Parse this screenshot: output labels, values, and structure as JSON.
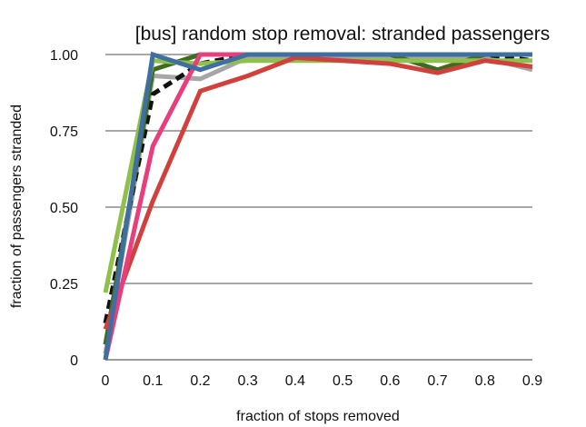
{
  "chart_data": {
    "type": "line",
    "title": "[bus] random stop removal: stranded passengers",
    "xlabel": "fraction of stops removed",
    "ylabel": "fraction of passengers stranded",
    "x": [
      0,
      0.1,
      0.2,
      0.3,
      0.4,
      0.5,
      0.6,
      0.7,
      0.8,
      0.9
    ],
    "x_tick_labels": [
      "0",
      "0.1",
      "0.2",
      "0.3",
      "0.4",
      "0.5",
      "0.6",
      "0.7",
      "0.8",
      "0.9"
    ],
    "y_ticks": [
      0,
      0.25,
      0.5,
      0.75,
      1.0
    ],
    "y_tick_labels": [
      "0",
      "0.25",
      "0.50",
      "0.75",
      "1.00"
    ],
    "ylim": [
      0,
      1.0
    ],
    "grid": "horizontal",
    "legend": "none",
    "series": [
      {
        "color": "#a6a6a6",
        "dash": "solid",
        "values": [
          0.02,
          0.93,
          0.92,
          0.99,
          0.99,
          0.99,
          0.99,
          0.99,
          0.99,
          0.95
        ]
      },
      {
        "color": "#111111",
        "dash": "dashed",
        "values": [
          0.12,
          0.87,
          0.97,
          1.0,
          1.0,
          1.0,
          1.0,
          1.0,
          1.0,
          0.98
        ]
      },
      {
        "color": "#3d6b1f",
        "dash": "solid",
        "values": [
          0.05,
          0.95,
          1.0,
          1.0,
          1.0,
          1.0,
          1.0,
          0.95,
          1.0,
          1.0
        ]
      },
      {
        "color": "#8fc04a",
        "dash": "solid",
        "values": [
          0.22,
          0.98,
          0.97,
          0.98,
          0.98,
          0.98,
          0.98,
          0.98,
          0.98,
          0.98
        ]
      },
      {
        "color": "#d0403d",
        "dash": "solid",
        "values": [
          0.1,
          0.52,
          0.88,
          0.93,
          0.99,
          0.98,
          0.97,
          0.94,
          0.98,
          0.96
        ]
      },
      {
        "color": "#e83e7c",
        "dash": "solid",
        "values": [
          0.0,
          0.7,
          1.0,
          1.0,
          1.0,
          1.0,
          1.0,
          1.0,
          1.0,
          1.0
        ]
      },
      {
        "color": "#3f6fa0",
        "dash": "solid",
        "values": [
          0.0,
          1.0,
          0.95,
          1.0,
          1.0,
          1.0,
          1.0,
          1.0,
          1.0,
          1.0
        ]
      }
    ]
  }
}
